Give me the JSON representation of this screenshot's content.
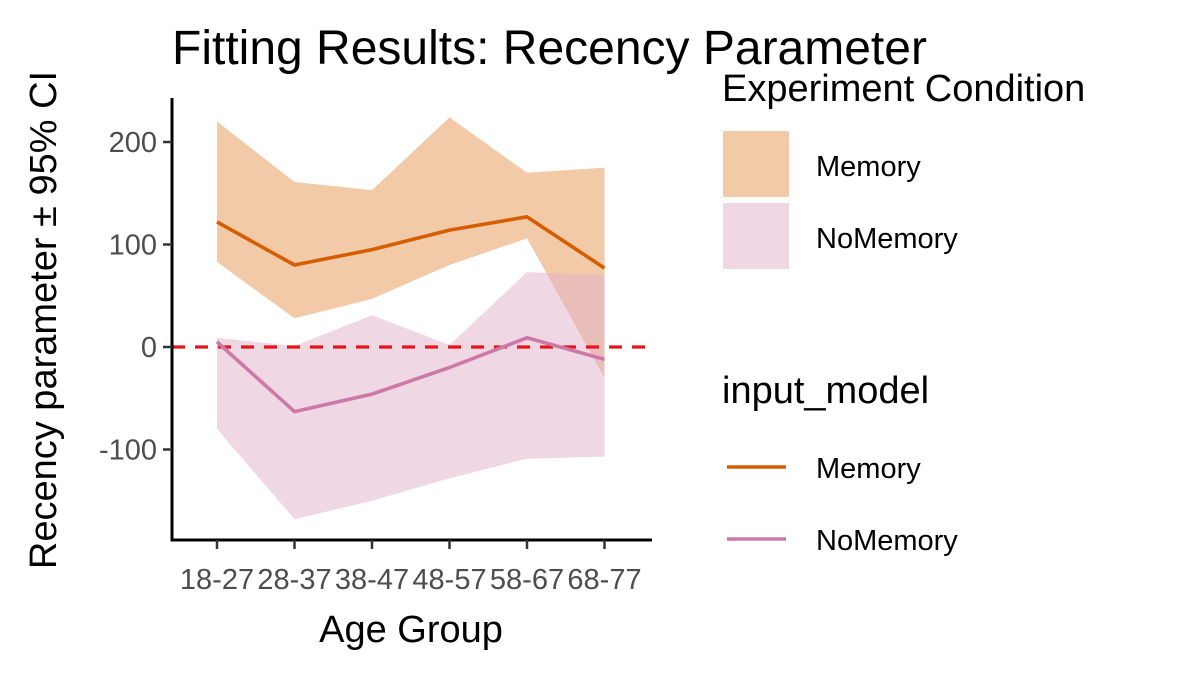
{
  "chart_data": {
    "type": "line",
    "title": "Fitting Results: Recency Parameter",
    "xlabel": "Age Group",
    "ylabel": "Recency parameter ± 95% CI",
    "categories": [
      "18-27",
      "28-37",
      "38-47",
      "48-57",
      "58-67",
      "68-77"
    ],
    "ylim": [
      -190,
      242
    ],
    "yticks": [
      -100,
      0,
      100,
      200
    ],
    "yticks_labels": [
      "-100",
      "0",
      "100",
      "200"
    ],
    "reference_line": {
      "y": 0,
      "color": "#e8141c",
      "style": "dashed"
    },
    "series": [
      {
        "name": "Memory",
        "values": [
          122,
          80,
          95,
          114,
          127,
          77
        ],
        "ci_lower": [
          83,
          28,
          47,
          80,
          106,
          -30
        ],
        "ci_upper": [
          220,
          161,
          153,
          224,
          170,
          175
        ],
        "line_color": "#d55e00",
        "ribbon_color": "#e89650"
      },
      {
        "name": "NoMemory",
        "values": [
          5,
          -63,
          -46,
          -20,
          9,
          -12
        ],
        "ci_lower": [
          -80,
          -168,
          -150,
          -128,
          -109,
          -107
        ],
        "ci_upper": [
          9,
          1,
          31,
          2,
          73,
          70
        ],
        "line_color": "#cc79a7",
        "ribbon_color": "#e0b0ca"
      }
    ],
    "grid": false,
    "legend_position": "right",
    "legends": [
      {
        "title": "Experiment Condition",
        "kind": "fill",
        "entries": [
          "Memory",
          "NoMemory"
        ]
      },
      {
        "title": "input_model",
        "kind": "line",
        "entries": [
          "Memory",
          "NoMemory"
        ]
      }
    ]
  }
}
